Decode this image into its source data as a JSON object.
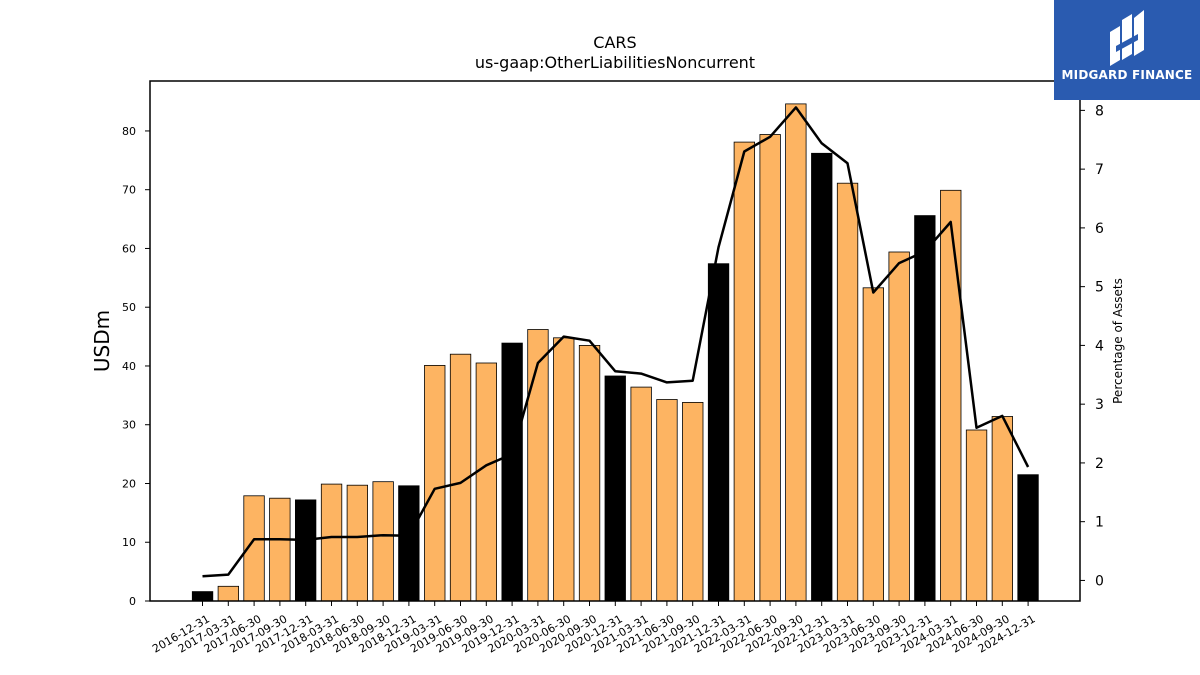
{
  "chart_data": {
    "type": "bar",
    "title": "CARS",
    "subtitle": "us-gaap:OtherLiabilitiesNoncurrent",
    "ylabel": "USDm",
    "y2label": "Percentage of Assets",
    "ylim": [
      0,
      88.5
    ],
    "y2lim": [
      -0.35,
      8.5
    ],
    "yticks": [
      0,
      10,
      20,
      30,
      40,
      50,
      60,
      70,
      80
    ],
    "y2ticks": [
      0,
      1,
      2,
      3,
      4,
      5,
      6,
      7,
      8
    ],
    "categories": [
      "2016-12-31",
      "2017-03-31",
      "2017-06-30",
      "2017-09-30",
      "2017-12-31",
      "2018-03-31",
      "2018-06-30",
      "2018-09-30",
      "2018-12-31",
      "2019-03-31",
      "2019-06-30",
      "2019-09-30",
      "2019-12-31",
      "2020-03-31",
      "2020-06-30",
      "2020-09-30",
      "2020-12-31",
      "2021-03-31",
      "2021-06-30",
      "2021-09-30",
      "2021-12-31",
      "2022-03-31",
      "2022-06-30",
      "2022-09-30",
      "2022-12-31",
      "2023-03-31",
      "2023-06-30",
      "2023-09-30",
      "2023-12-31",
      "2024-03-31",
      "2024-06-30",
      "2024-09-30",
      "2024-12-31"
    ],
    "series": [
      {
        "kind": "bar",
        "values": [
          1.6,
          2.5,
          17.9,
          17.5,
          17.2,
          19.9,
          19.7,
          20.3,
          19.6,
          40.1,
          42.0,
          40.5,
          43.9,
          46.2,
          44.8,
          43.5,
          38.3,
          36.4,
          34.3,
          33.8,
          57.4,
          78.1,
          79.4,
          84.6,
          76.2,
          71.1,
          53.3,
          59.4,
          65.6,
          69.9,
          29.1,
          31.4,
          21.5
        ],
        "year_end_flags": [
          true,
          false,
          false,
          false,
          true,
          false,
          false,
          false,
          true,
          false,
          false,
          false,
          true,
          false,
          false,
          false,
          true,
          false,
          false,
          false,
          true,
          false,
          false,
          false,
          true,
          false,
          false,
          false,
          true,
          false,
          false,
          false,
          true
        ]
      },
      {
        "kind": "line",
        "axis": "right",
        "values": [
          0.07,
          0.1,
          0.7,
          0.7,
          0.69,
          0.74,
          0.74,
          0.77,
          0.76,
          1.56,
          1.66,
          1.96,
          2.15,
          3.7,
          4.15,
          4.08,
          3.56,
          3.52,
          3.37,
          3.4,
          5.67,
          7.3,
          7.55,
          8.05,
          7.44,
          7.1,
          4.9,
          5.4,
          5.6,
          6.1,
          2.6,
          2.8,
          1.93
        ]
      }
    ],
    "colors": {
      "bar_regular": "#fdb462",
      "bar_year_end": "#000000",
      "line": "#000000"
    },
    "grid": false,
    "legend": "none"
  },
  "logo": {
    "text": "MIDGARD FINANCE",
    "icon": "midgard-logo-icon"
  }
}
